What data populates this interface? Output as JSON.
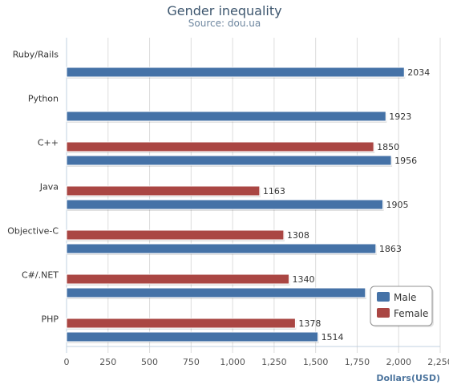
{
  "title": "Gender inequality",
  "subtitle": "Source: dou.ua",
  "chart_data": {
    "type": "bar",
    "orientation": "horizontal",
    "title": "Gender inequality",
    "subtitle": "Source: dou.ua",
    "xlabel": "Dollars(USD)",
    "ylabel": "",
    "categories": [
      "Ruby/Rails",
      "Python",
      "C++",
      "Java",
      "Objective-C",
      "C#/.NET",
      "PHP"
    ],
    "series": [
      {
        "name": "Female",
        "color": "#aa4643",
        "values": [
          null,
          null,
          1850,
          1163,
          1308,
          1340,
          1378
        ]
      },
      {
        "name": "Male",
        "color": "#4572a7",
        "values": [
          2034,
          1923,
          1956,
          1905,
          1863,
          1800,
          1514
        ]
      }
    ],
    "data_labels": {
      "Female": [
        "",
        "",
        "1850",
        "1163",
        "1308",
        "1340",
        "1378"
      ],
      "Male": [
        "2034",
        "1923",
        "1956",
        "1905",
        "1863",
        "",
        "1514"
      ]
    },
    "xlim": [
      0,
      2250
    ],
    "ticks": [
      0,
      250,
      500,
      750,
      1000,
      1250,
      1500,
      1750,
      2000,
      2250
    ],
    "tick_labels": [
      "0",
      "250",
      "500",
      "750",
      "1,000",
      "1,250",
      "1,500",
      "1,750",
      "2,000",
      "2,250"
    ],
    "grid": true,
    "legend": {
      "placement": "bottom-right",
      "entries": [
        "Male",
        "Female"
      ]
    }
  }
}
